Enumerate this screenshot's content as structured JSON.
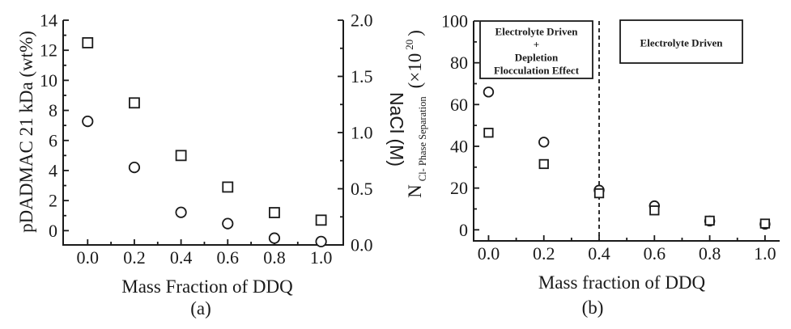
{
  "figure": {
    "background": "#ffffff",
    "ink_color": "#1a1a1a",
    "marker_fill": "#ffffff"
  },
  "chart_data": [
    {
      "id": "a",
      "type": "scatter",
      "caption": "(a)",
      "xlabel": "Mass Fraction of DDQ",
      "ylabel_left": "pDADMAC 21 kDa (wt%)",
      "ylabel_right": "NaCl (M)",
      "xlim": [
        -0.105,
        1.095
      ],
      "ylim_left": [
        -0.95,
        14
      ],
      "ylim_right": [
        0,
        2
      ],
      "grid": false,
      "x_ticks": [
        {
          "v": 0.0,
          "label": "0.0"
        },
        {
          "v": 0.2,
          "label": "0.2"
        },
        {
          "v": 0.4,
          "label": "0.4"
        },
        {
          "v": 0.6,
          "label": "0.6"
        },
        {
          "v": 0.8,
          "label": "0.8"
        },
        {
          "v": 1.0,
          "label": "1.0"
        }
      ],
      "y_ticks_left": [
        {
          "v": 0,
          "label": "0"
        },
        {
          "v": 2,
          "label": "2"
        },
        {
          "v": 4,
          "label": "4"
        },
        {
          "v": 6,
          "label": "6"
        },
        {
          "v": 8,
          "label": "8"
        },
        {
          "v": 10,
          "label": "10"
        },
        {
          "v": 12,
          "label": "12"
        },
        {
          "v": 14,
          "label": "14"
        }
      ],
      "y_ticks_right": [
        {
          "v": 0.0,
          "label": "0.0"
        },
        {
          "v": 0.5,
          "label": "0.5"
        },
        {
          "v": 1.0,
          "label": "1.0"
        },
        {
          "v": 1.5,
          "label": "1.5"
        },
        {
          "v": 2.0,
          "label": "2.0"
        }
      ],
      "series": [
        {
          "name": "pDADMAC 21 kDa (wt%)",
          "marker": "square",
          "yaxis": "left",
          "points": [
            [
              0.0,
              12.5
            ],
            [
              0.2,
              8.5
            ],
            [
              0.4,
              5.0
            ],
            [
              0.6,
              2.9
            ],
            [
              0.8,
              1.2
            ],
            [
              1.0,
              0.7
            ]
          ]
        },
        {
          "name": "NaCl (M)",
          "marker": "circle",
          "yaxis": "right",
          "points": [
            [
              0.0,
              1.1
            ],
            [
              0.2,
              0.69
            ],
            [
              0.4,
              0.29
            ],
            [
              0.6,
              0.19
            ],
            [
              0.8,
              0.06
            ],
            [
              1.0,
              0.03
            ]
          ]
        }
      ]
    },
    {
      "id": "b",
      "type": "scatter",
      "caption": "(b)",
      "xlabel": "Mass fraction of DDQ",
      "ylabel": {
        "main": "N",
        "sub": "Cl- Phase Separation",
        "x_part": "(×10",
        "sup": "20",
        "close": ")"
      },
      "xlim": [
        -0.054,
        1.053
      ],
      "ylim_left": [
        -5.3,
        100
      ],
      "grid": false,
      "x_ticks": [
        {
          "v": 0.0,
          "label": "0.0"
        },
        {
          "v": 0.2,
          "label": "0.2"
        },
        {
          "v": 0.4,
          "label": "0.4"
        },
        {
          "v": 0.6,
          "label": "0.6"
        },
        {
          "v": 0.8,
          "label": "0.8"
        },
        {
          "v": 1.0,
          "label": "1.0"
        }
      ],
      "y_ticks_left": [
        {
          "v": 0,
          "label": "0"
        },
        {
          "v": 20,
          "label": "20"
        },
        {
          "v": 40,
          "label": "40"
        },
        {
          "v": 60,
          "label": "60"
        },
        {
          "v": 80,
          "label": "80"
        },
        {
          "v": 100,
          "label": "100"
        }
      ],
      "vline": {
        "x": 0.4,
        "style": "dashed"
      },
      "annotations": [
        {
          "lines": [
            "Electrolyte Driven",
            "+",
            "Depletion",
            "Flocculation Effect"
          ]
        },
        {
          "lines": [
            "Electrolyte Driven"
          ]
        }
      ],
      "series": [
        {
          "name": "N Cl- phase separation (circles)",
          "marker": "circle",
          "yaxis": "left",
          "points": [
            [
              0.0,
              66
            ],
            [
              0.2,
              42
            ],
            [
              0.4,
              19
            ],
            [
              0.6,
              11.5
            ],
            [
              0.8,
              4.2
            ],
            [
              1.0,
              2.7
            ]
          ]
        },
        {
          "name": "N Cl- phase separation (squares)",
          "marker": "square",
          "yaxis": "left",
          "points": [
            [
              0.0,
              46.5
            ],
            [
              0.2,
              31.5
            ],
            [
              0.4,
              17.5
            ],
            [
              0.6,
              9.3
            ],
            [
              0.8,
              4.4
            ],
            [
              1.0,
              3.0
            ]
          ]
        }
      ]
    }
  ]
}
